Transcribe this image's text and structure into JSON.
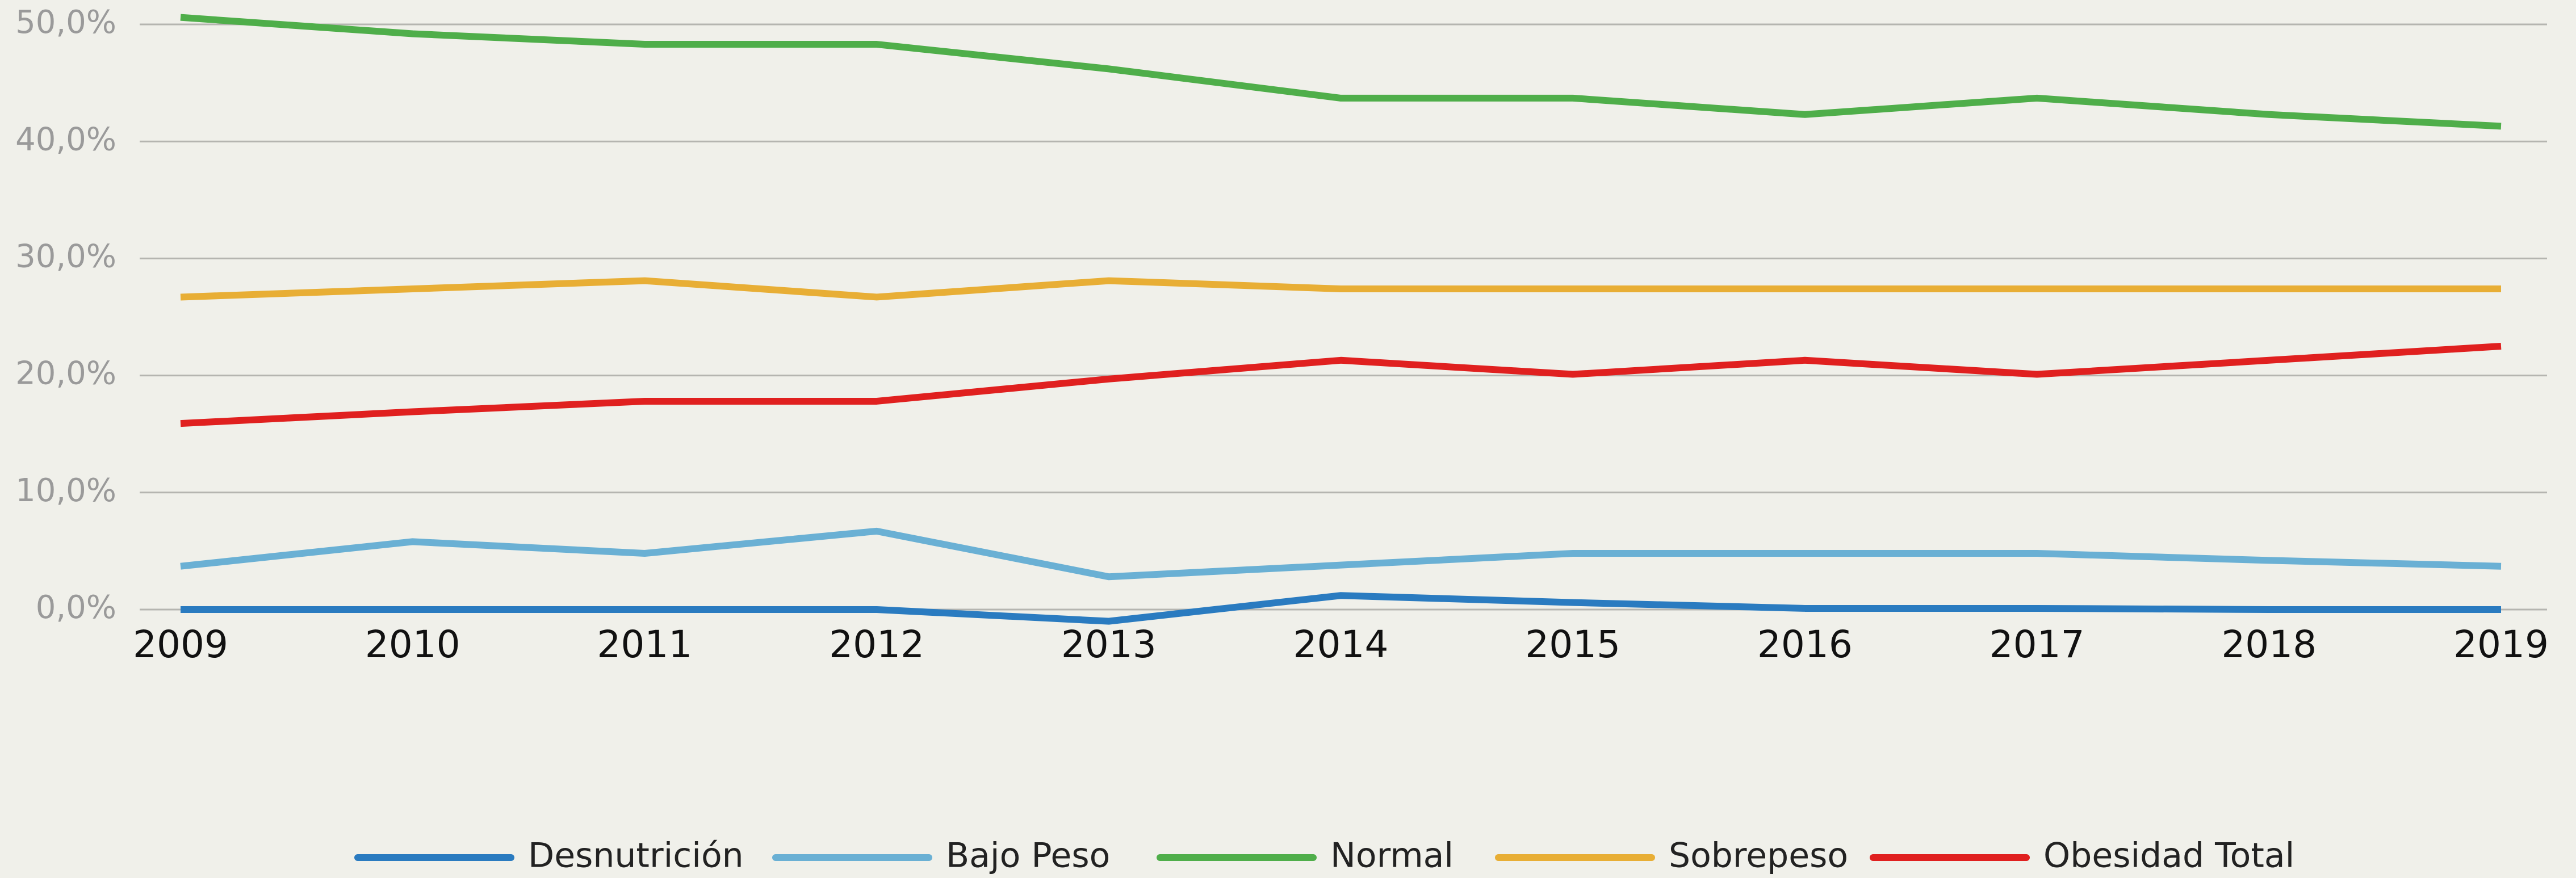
{
  "chart_data": {
    "type": "line",
    "categories": [
      "2009",
      "2010",
      "2011",
      "2012",
      "2013",
      "2014",
      "2015",
      "2016",
      "2017",
      "2018",
      "2019"
    ],
    "series": [
      {
        "name": "Desnutrición",
        "color": "#2a7bc0",
        "values": [
          0,
          0,
          0,
          0,
          -1,
          1.2,
          0.6,
          0.1,
          0.1,
          0,
          0
        ]
      },
      {
        "name": "Bajo Peso",
        "color": "#6ab0d4",
        "values": [
          3.7,
          5.8,
          4.8,
          6.7,
          2.8,
          3.8,
          4.8,
          4.8,
          4.8,
          4.2,
          3.7
        ]
      },
      {
        "name": "Normal",
        "color": "#4fae4a",
        "values": [
          50.6,
          49.2,
          48.3,
          48.3,
          46.2,
          43.7,
          43.7,
          42.3,
          43.7,
          42.3,
          41.3
        ]
      },
      {
        "name": "Sobrepeso",
        "color": "#e8ae35",
        "values": [
          26.7,
          27.4,
          28.1,
          26.7,
          28.1,
          27.4,
          27.4,
          27.4,
          27.4,
          27.4,
          27.4
        ]
      },
      {
        "name": "Obesidad Total",
        "color": "#e0201f",
        "values": [
          15.9,
          16.9,
          17.8,
          17.8,
          19.7,
          21.3,
          20.1,
          21.3,
          20.1,
          21.3,
          22.5
        ]
      }
    ],
    "ylim": [
      0,
      50
    ],
    "yticks": [
      {
        "value": 0,
        "label": "0,0%"
      },
      {
        "value": 10,
        "label": "10,0%"
      },
      {
        "value": 20,
        "label": "20,0%"
      },
      {
        "value": 30,
        "label": "30,0%"
      },
      {
        "value": 40,
        "label": "40,0%"
      },
      {
        "value": 50,
        "label": "50,0%"
      }
    ],
    "grid": true,
    "legend": "bottom"
  }
}
